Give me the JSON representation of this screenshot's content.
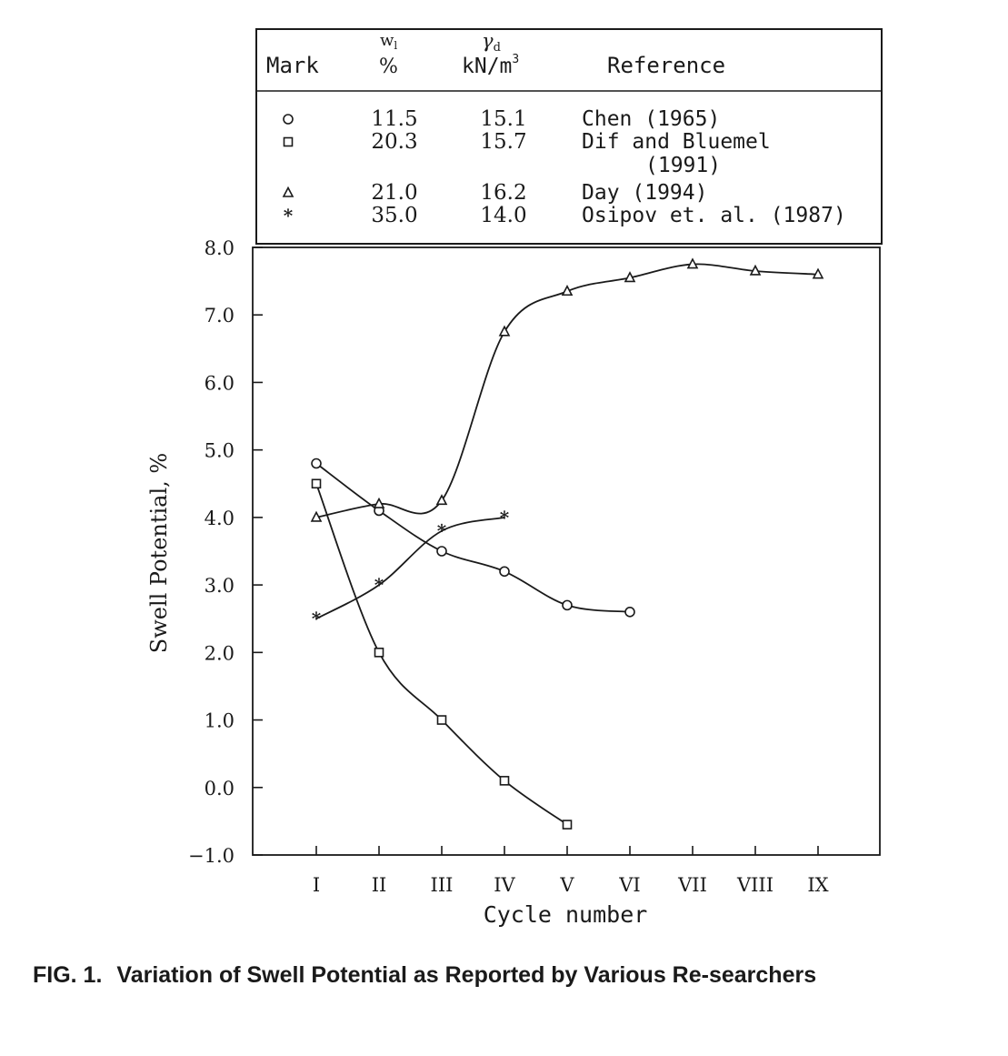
{
  "caption": {
    "label": "FIG. 1.",
    "text": "Variation of Swell Potential as Reported by Various Re-searchers"
  },
  "legend_table": {
    "headers": {
      "mark": "Mark",
      "wl_symbol": "w",
      "wl_subscript": "l",
      "wl_unit": "%",
      "gd_symbol": "γ",
      "gd_subscript": "d",
      "gd_unit": "kN/m",
      "gd_unit_power": "3",
      "reference": "Reference"
    },
    "rows": [
      {
        "mark": "circle",
        "wl": "11.5",
        "gd": "15.1",
        "reference": [
          "Chen (1965)"
        ]
      },
      {
        "mark": "square",
        "wl": "20.3",
        "gd": "15.7",
        "reference": [
          "Dif and Bluemel",
          "(1991)"
        ]
      },
      {
        "mark": "triangle",
        "wl": "21.0",
        "gd": "16.2",
        "reference": [
          "Day (1994)"
        ]
      },
      {
        "mark": "star",
        "wl": "35.0",
        "gd": "14.0",
        "reference": [
          "Osipov et. al. (1987)"
        ]
      }
    ]
  },
  "chart_data": {
    "type": "line",
    "xlabel": "Cycle number",
    "ylabel": "Swell Potential, %",
    "categories": [
      "I",
      "II",
      "III",
      "IV",
      "V",
      "VI",
      "VII",
      "VIII",
      "IX"
    ],
    "ylim": [
      -1.0,
      8.0
    ],
    "yticks": [
      "-1.0",
      "0.0",
      "1.0",
      "2.0",
      "3.0",
      "4.0",
      "5.0",
      "6.0",
      "7.0",
      "8.0"
    ],
    "grid": false,
    "series": [
      {
        "name": "Chen (1965)",
        "marker": "circle",
        "x": [
          1,
          2,
          3,
          4,
          5,
          6
        ],
        "values": [
          4.8,
          4.1,
          3.5,
          3.2,
          2.7,
          2.6
        ]
      },
      {
        "name": "Dif and Bluemel (1991)",
        "marker": "square",
        "x": [
          1,
          2,
          3,
          4,
          5
        ],
        "values": [
          4.5,
          2.0,
          1.0,
          0.1,
          -0.55
        ]
      },
      {
        "name": "Day (1994)",
        "marker": "triangle",
        "x": [
          1,
          2,
          3,
          4,
          5,
          6,
          7,
          8,
          9
        ],
        "values": [
          4.0,
          4.2,
          4.25,
          6.75,
          7.35,
          7.55,
          7.75,
          7.65,
          7.6
        ]
      },
      {
        "name": "Osipov et. al. (1987)",
        "marker": "star",
        "x": [
          1,
          2,
          3,
          4
        ],
        "values": [
          2.5,
          3.0,
          3.8,
          4.0
        ]
      }
    ]
  }
}
